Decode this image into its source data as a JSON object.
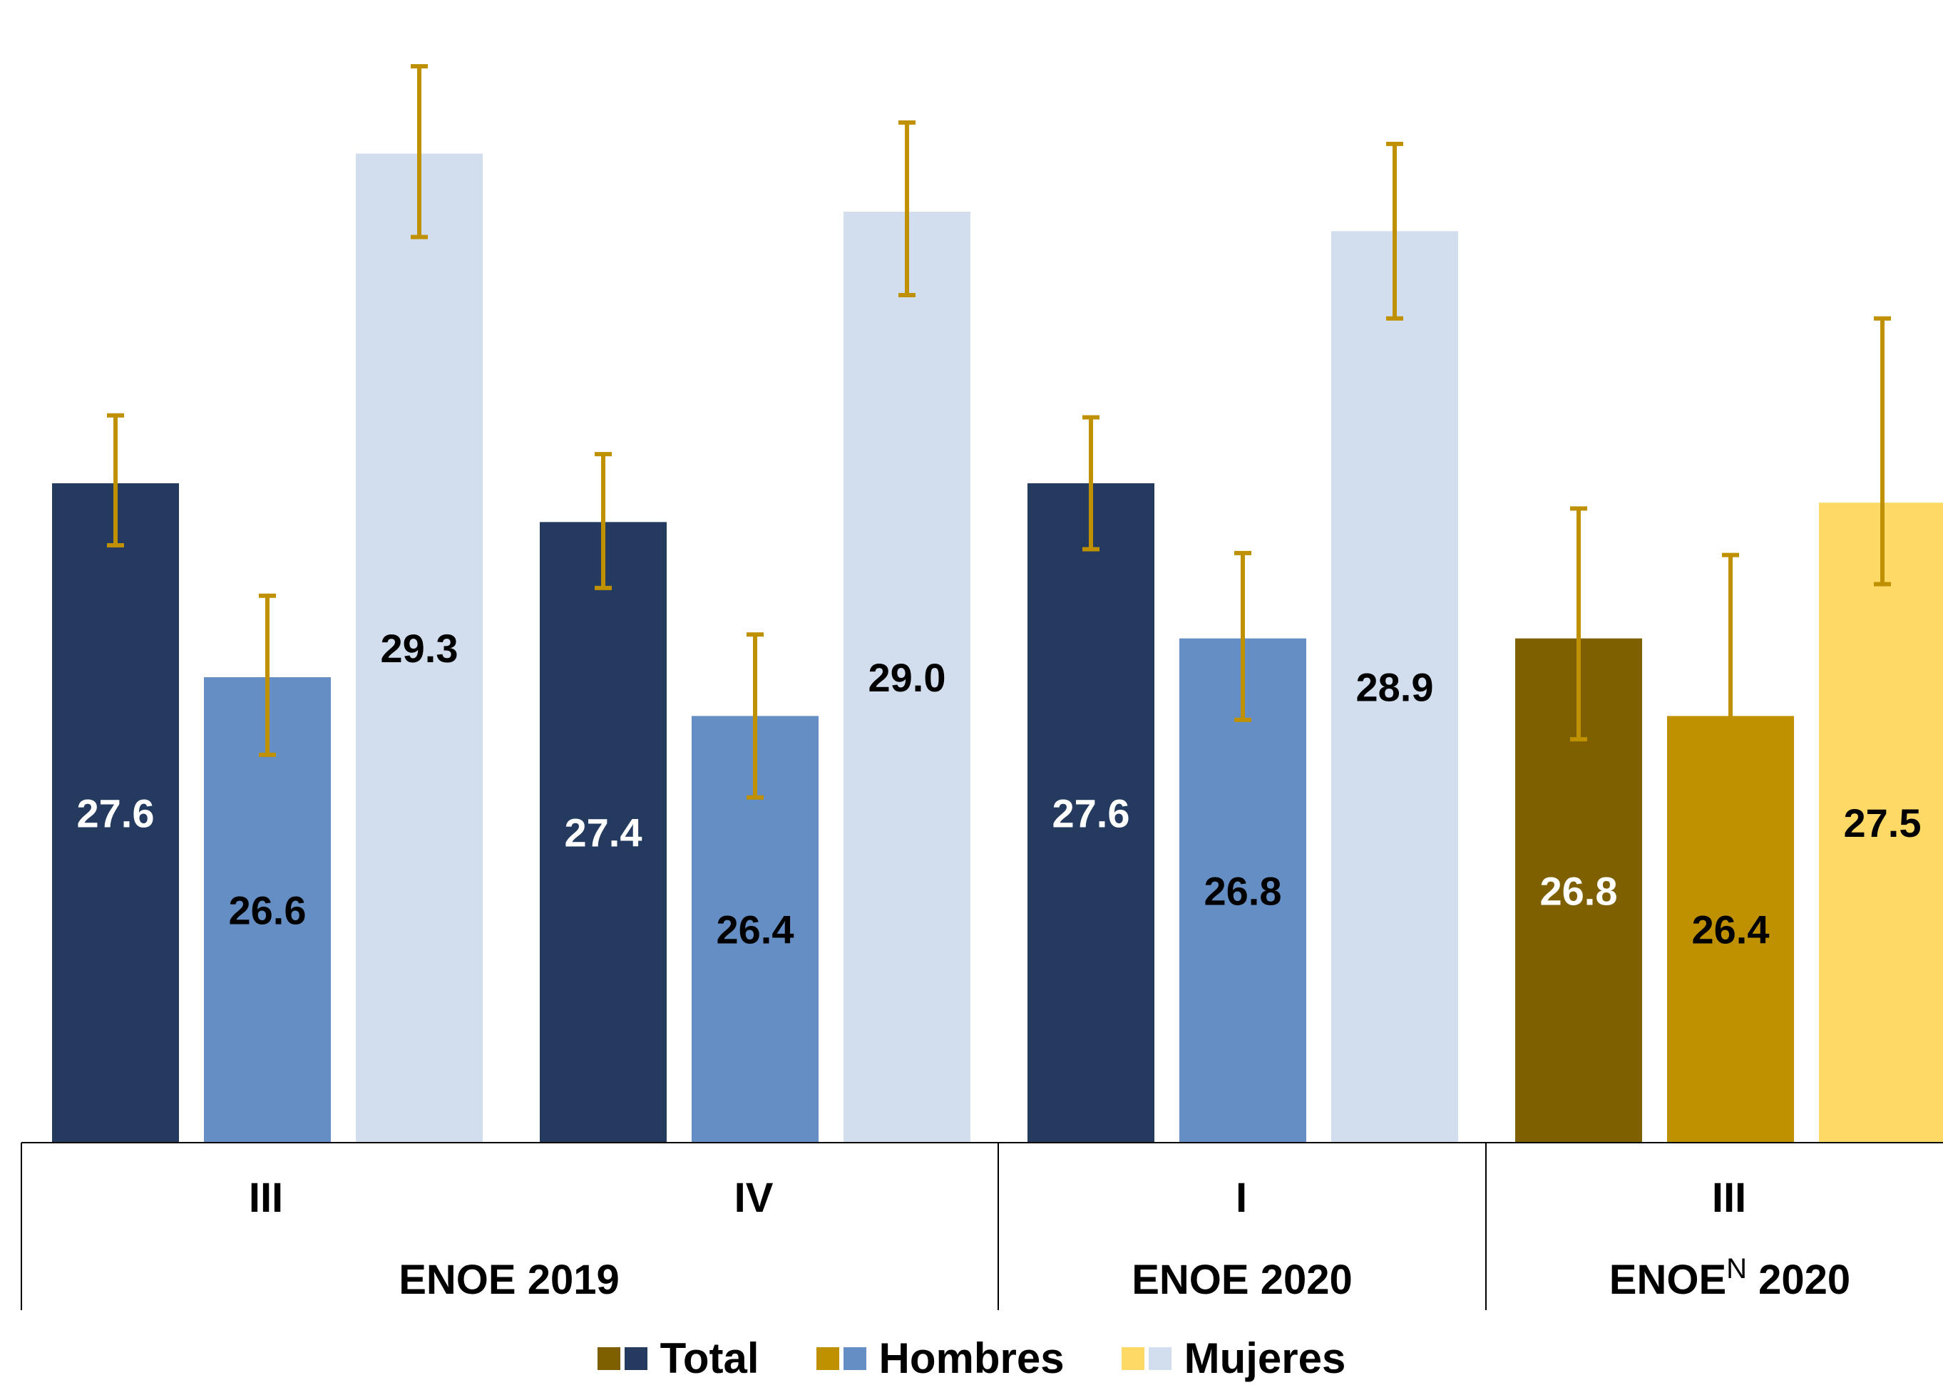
{
  "chart_data": {
    "type": "bar",
    "title": "",
    "xlabel": "",
    "ylabel": "",
    "ylim": [
      24.2,
      30.0
    ],
    "series": [
      {
        "name": "Total",
        "colors": [
          "#243A5E",
          "#243A5E",
          "#243A5E",
          "#7F6000"
        ],
        "label_colors": [
          "#FFFFFF",
          "#FFFFFF",
          "#FFFFFF",
          "#FFFFFF"
        ]
      },
      {
        "name": "Hombres",
        "colors": [
          "#658EC4",
          "#658EC4",
          "#658EC4",
          "#BF9000"
        ],
        "label_colors": [
          "#000000",
          "#000000",
          "#000000",
          "#000000"
        ]
      },
      {
        "name": "Mujeres",
        "colors": [
          "#D2DEEE",
          "#D2DEEE",
          "#D2DEEE",
          "#FFD966"
        ],
        "label_colors": [
          "#000000",
          "#000000",
          "#000000",
          "#000000"
        ]
      }
    ],
    "categories": [
      {
        "quarter": "III",
        "group": "ENOE 2019",
        "values": [
          27.6,
          26.6,
          29.3
        ],
        "labels": [
          "27.6",
          "26.6",
          "29.3"
        ],
        "err_low": [
          27.28,
          26.2,
          28.87
        ],
        "err_high": [
          27.95,
          27.02,
          29.75
        ]
      },
      {
        "quarter": "IV",
        "group": "ENOE 2019",
        "values": [
          27.4,
          26.4,
          29.0
        ],
        "labels": [
          "27.4",
          "26.4",
          "29.0"
        ],
        "err_low": [
          27.06,
          25.98,
          28.57
        ],
        "err_high": [
          27.75,
          26.82,
          29.46
        ]
      },
      {
        "quarter": "I",
        "group": "ENOE 2020",
        "values": [
          27.6,
          26.8,
          28.9
        ],
        "labels": [
          "27.6",
          "26.8",
          "28.9"
        ],
        "err_low": [
          27.26,
          26.38,
          28.45
        ],
        "err_high": [
          27.94,
          27.24,
          29.35
        ]
      },
      {
        "quarter": "III",
        "group": "ENOEN 2020",
        "values": [
          26.8,
          26.4,
          27.5
        ],
        "labels": [
          "26.8",
          "26.4",
          "27.5"
        ],
        "err_low": [
          26.28,
          25.88,
          27.08
        ],
        "err_high": [
          27.47,
          27.23,
          28.45
        ]
      }
    ],
    "groups": [
      {
        "name": "ENOE 2019",
        "label": "ENOE 2019",
        "superscript": ""
      },
      {
        "name": "ENOE 2020",
        "label": "ENOE 2020",
        "superscript": ""
      },
      {
        "name": "ENOEN 2020",
        "label": "ENOE",
        "superscript": "N",
        "suffix": " 2020"
      }
    ],
    "error_bar_color": "#BF9000",
    "legend": {
      "placement": "bottom",
      "items": [
        {
          "label": "Total",
          "swatches": [
            "#7F6000",
            "#243A5E"
          ]
        },
        {
          "label": "Hombres",
          "swatches": [
            "#BF9000",
            "#658EC4"
          ]
        },
        {
          "label": "Mujeres",
          "swatches": [
            "#FFD966",
            "#D2DEEE"
          ]
        }
      ]
    },
    "grid": false
  }
}
